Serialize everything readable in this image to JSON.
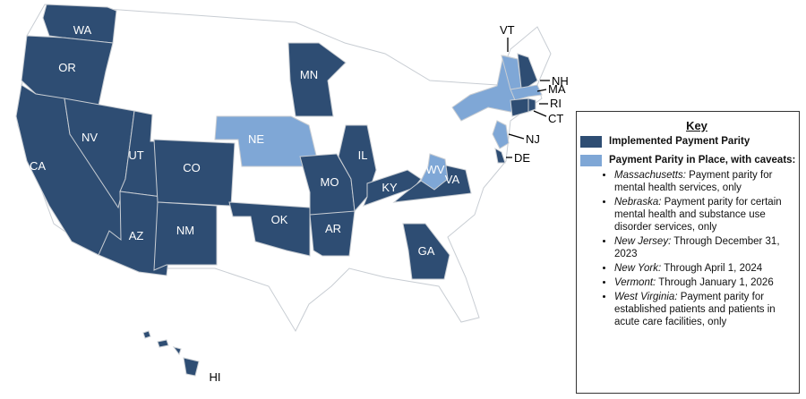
{
  "colors": {
    "implemented": "#2e4d73",
    "caveats": "#7fa7d6",
    "other": "#ffffff",
    "border": "#c8cdd3"
  },
  "states": {
    "implemented": [
      "WA",
      "OR",
      "CA",
      "NV",
      "UT",
      "AZ",
      "CO",
      "NM",
      "MN",
      "IL",
      "MO",
      "OK",
      "AR",
      "KY",
      "VA",
      "GA",
      "NH",
      "CT",
      "RI",
      "DE",
      "HI"
    ],
    "caveats": [
      "NE",
      "WV",
      "NY",
      "VT",
      "MA",
      "NJ"
    ]
  },
  "labels": {
    "WA": "WA",
    "OR": "OR",
    "CA": "CA",
    "NV": "NV",
    "UT": "UT",
    "AZ": "AZ",
    "CO": "CO",
    "NM": "NM",
    "NE": "NE",
    "MN": "MN",
    "IL": "IL",
    "MO": "MO",
    "OK": "OK",
    "AR": "AR",
    "KY": "KY",
    "WV": "WV",
    "VA": "VA",
    "GA": "GA",
    "HI": "HI",
    "VT": "VT",
    "NH": "NH",
    "MA": "MA",
    "RI": "RI",
    "CT": "CT",
    "NJ": "NJ",
    "DE": "DE"
  },
  "key": {
    "title": "Key",
    "implemented": "Implemented Payment Parity",
    "caveats": "Payment Parity in Place, with caveats:",
    "items": [
      {
        "state": "Massachusetts:",
        "text": " Payment parity for mental health services, only"
      },
      {
        "state": "Nebraska:",
        "text": " Payment parity for certain mental health and substance use disorder services, only"
      },
      {
        "state": "New Jersey:",
        "text": " Through December 31, 2023"
      },
      {
        "state": "New York:",
        "text": " Through April 1, 2024"
      },
      {
        "state": "Vermont:",
        "text": " Through January 1, 2026"
      },
      {
        "state": "West Virginia:",
        "text": " Payment parity for established patients and patients in acute care facilities, only"
      }
    ]
  }
}
